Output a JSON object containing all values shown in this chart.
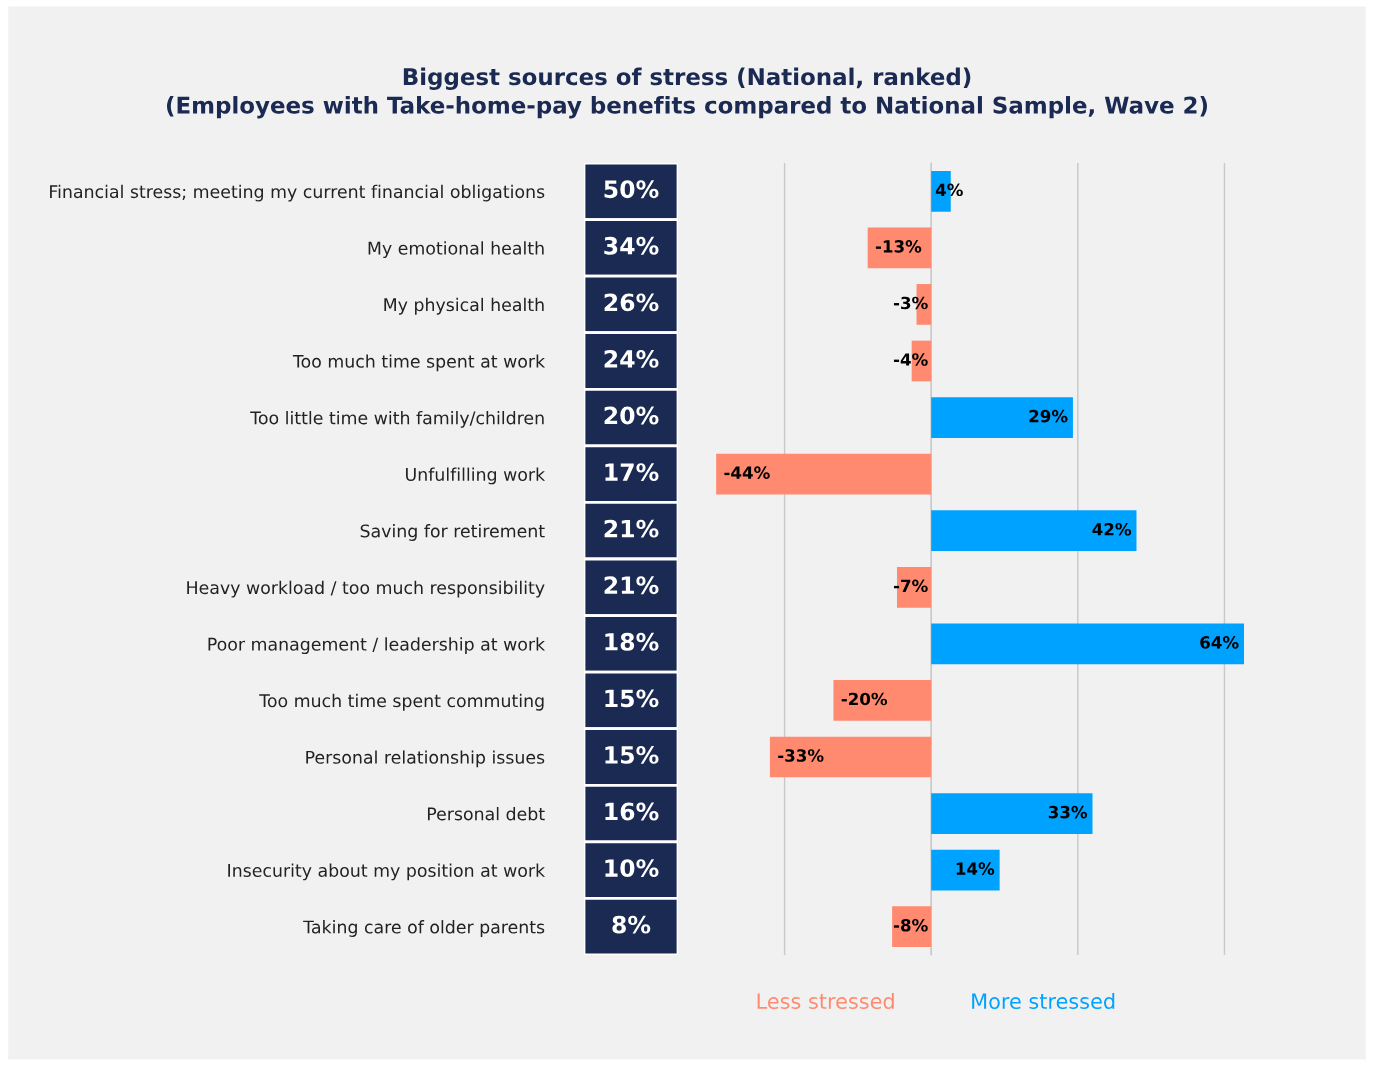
{
  "chart_data": {
    "type": "bar",
    "orientation": "horizontal",
    "title": "Biggest sources of stress (National, ranked)\n(Employees with Take-home-pay benefits compared to National Sample, Wave 2)",
    "categories": [
      "Financial stress; meeting my current financial obligations",
      "My emotional health",
      "My physical health",
      "Too much time spent at work",
      "Too little time with family/children",
      "Unfulfilling work",
      "Saving for retirement",
      "Heavy workload / too much responsibility",
      "Poor management / leadership at work",
      "Too much time spent commuting",
      "Personal relationship issues",
      "Personal debt",
      "Insecurity about my position at work",
      "Taking care of older parents"
    ],
    "values": [
      4,
      -13,
      -3,
      -4,
      29,
      -44,
      42,
      -7,
      64,
      -20,
      -33,
      33,
      14,
      -8
    ],
    "colors": [
      "#00a2ff",
      "#ff8a70",
      "#ff8a70",
      "#ff8a70",
      "#00a2ff",
      "#ff8a70",
      "#00a2ff",
      "#ff8a70",
      "#00a2ff",
      "#ff8a70",
      "#ff8a70",
      "#00a2ff",
      "#00a2ff",
      "#ff8a70"
    ],
    "value_labels": [
      "4%",
      "-13%",
      "-3%",
      "-4%",
      "29%",
      "-44%",
      "42%",
      "-7%",
      "64%",
      "-20%",
      "-33%",
      "33%",
      "14%",
      "-8%"
    ],
    "grid": "x",
    "annotations": [
      "50%",
      "34%",
      "26%",
      "24%",
      "20%",
      "17%",
      "21%",
      "21%",
      "18%",
      "15%",
      "15%",
      "16%",
      "10%",
      "8%",
      "Less stressed",
      "More stressed"
    ]
  }
}
